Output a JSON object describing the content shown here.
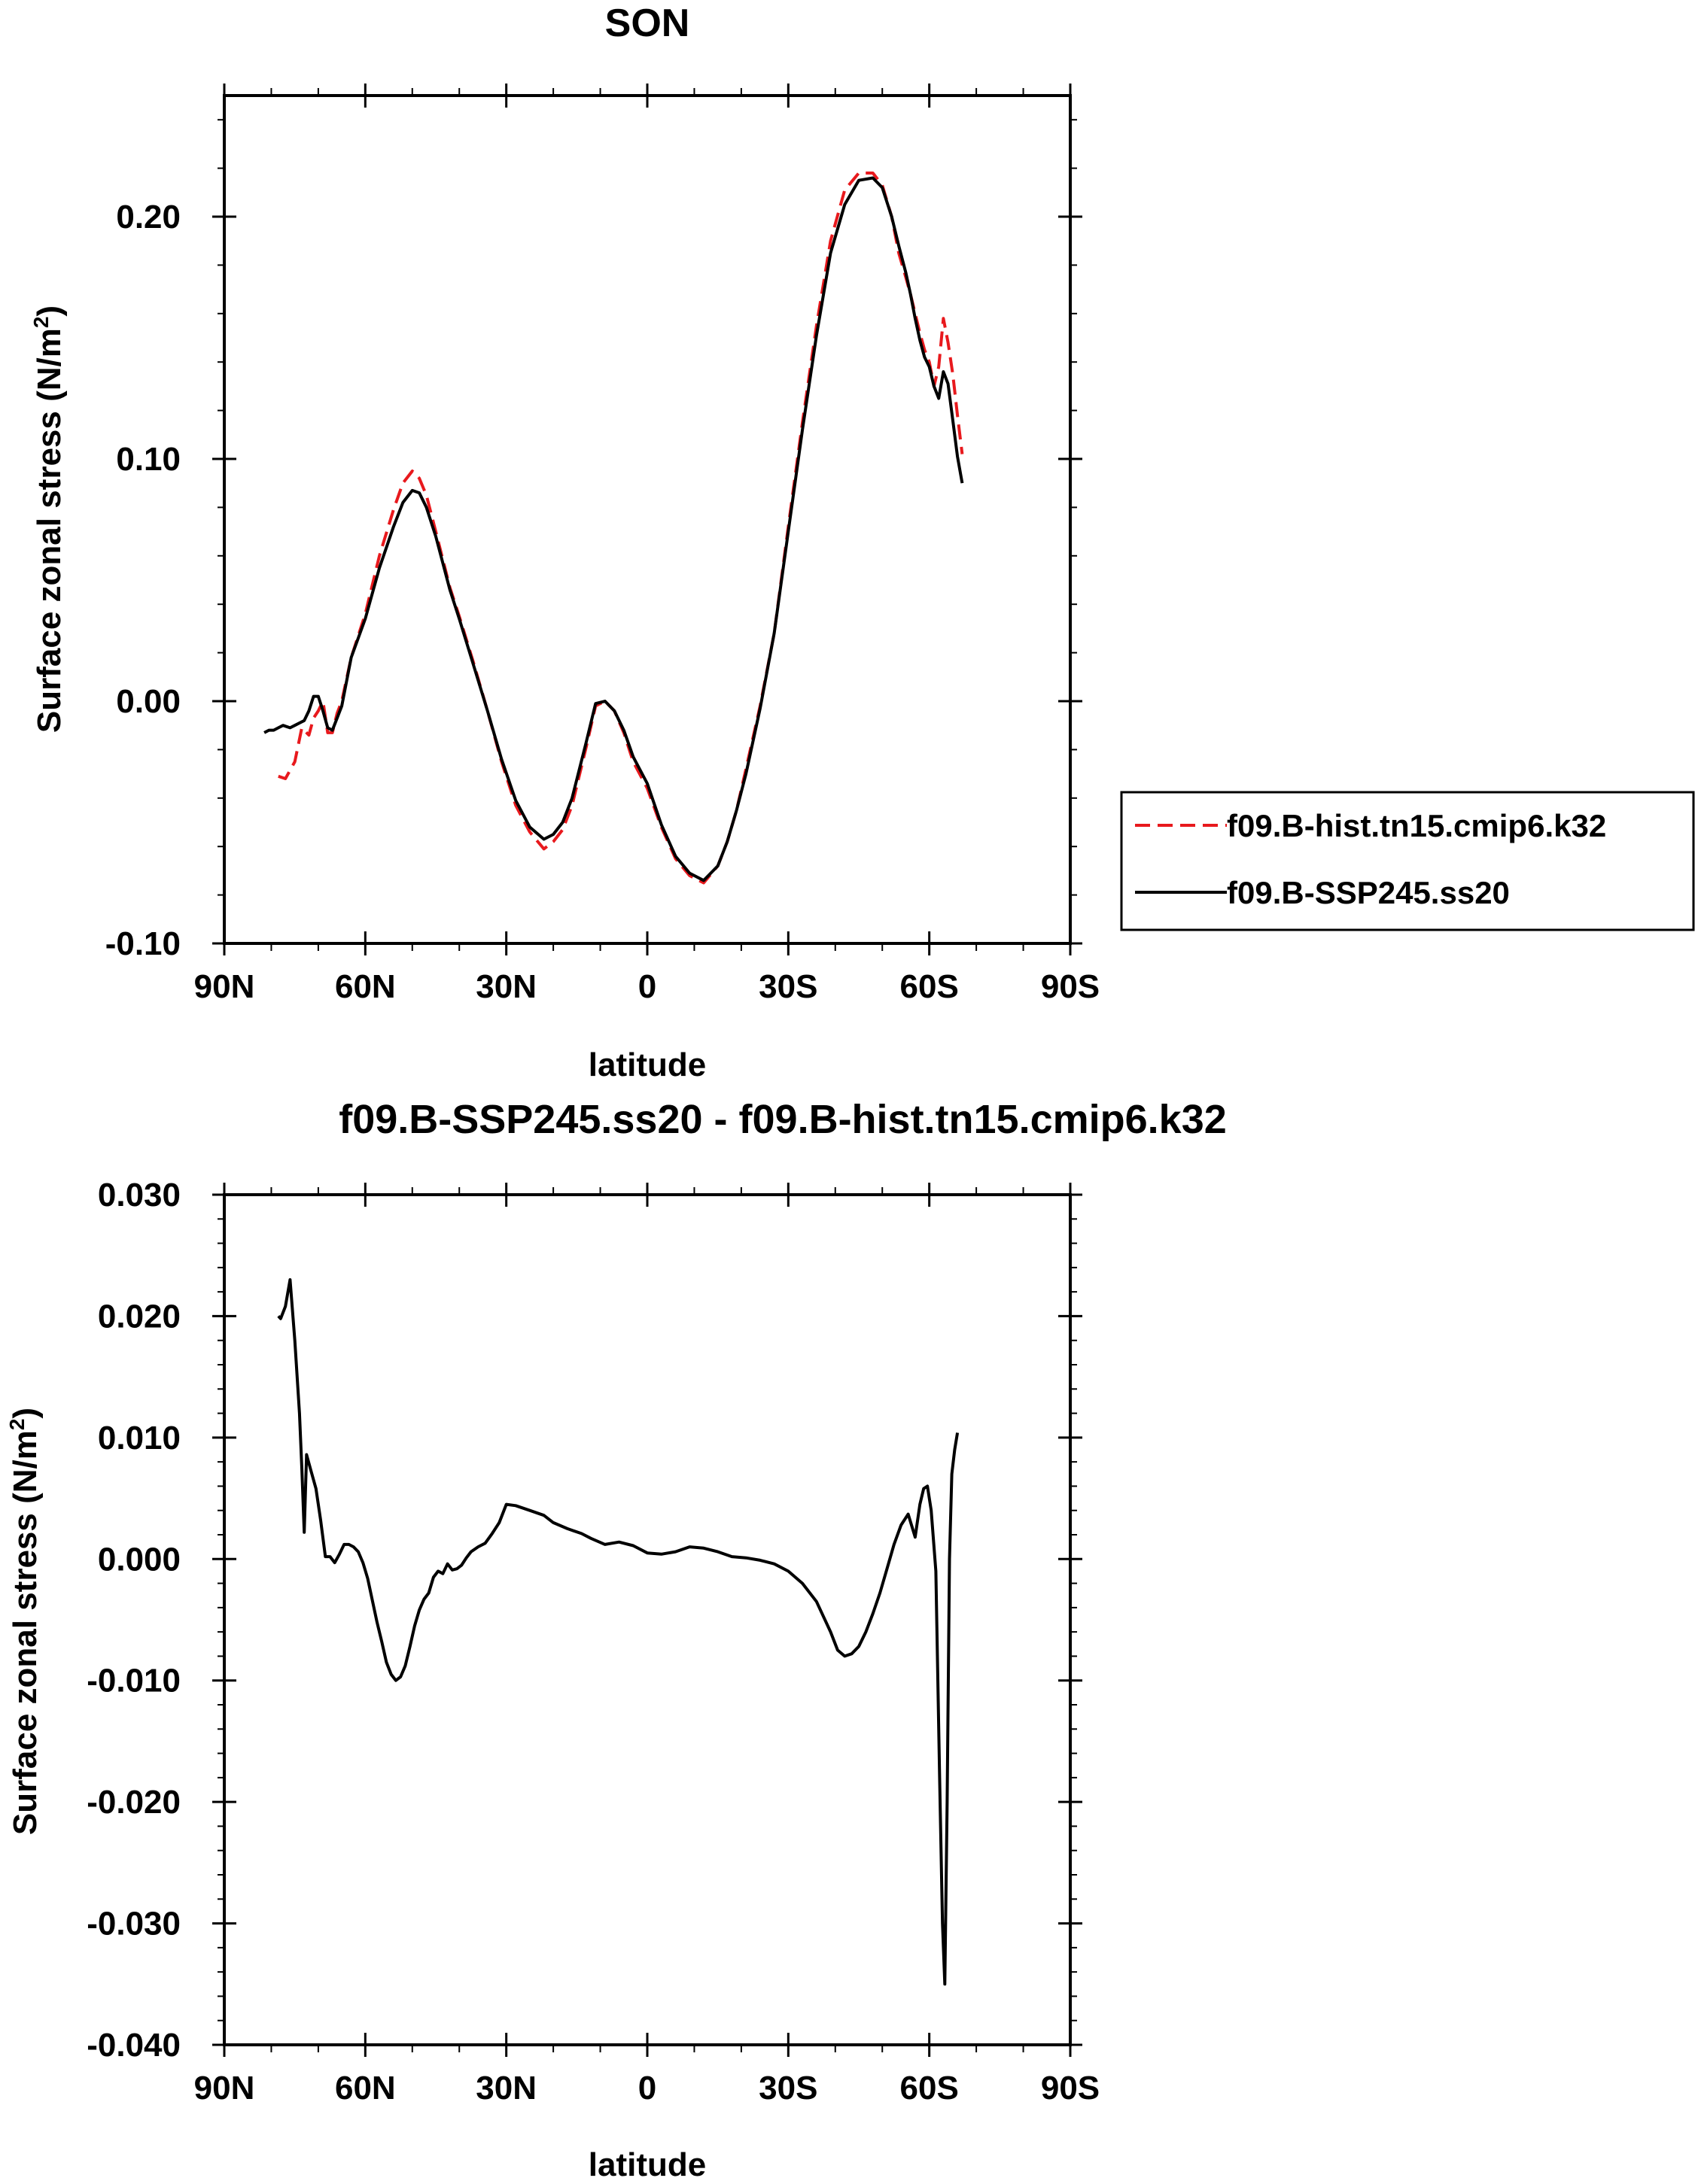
{
  "chart_data": [
    {
      "type": "line",
      "title": "SON",
      "xlabel": "latitude",
      "ylabel": "Surface zonal stress (N/m",
      "ylabel_sup": "2",
      "ylabel_close": ")",
      "xlim": [
        90,
        -90
      ],
      "ylim": [
        -0.1,
        0.25
      ],
      "x_ticks": [
        90,
        60,
        30,
        0,
        -30,
        -60,
        -90
      ],
      "x_tick_labels": [
        "90N",
        "60N",
        "30N",
        "0",
        "30S",
        "60S",
        "90S"
      ],
      "y_ticks": [
        -0.1,
        0.0,
        0.1,
        0.2
      ],
      "y_tick_labels": [
        "-0.10",
        "0.00",
        "0.10",
        "0.20"
      ],
      "legend_position": "outside-right",
      "series": [
        {
          "name": "f09.B-hist.tn15.cmip6.k32",
          "color": "#e8191d",
          "dash": "dashed",
          "x": [
            78.5,
            77,
            75,
            73.5,
            72,
            71,
            70,
            69,
            68,
            67,
            66,
            65,
            63,
            60,
            57,
            54,
            52,
            50,
            48.5,
            47,
            45,
            42,
            40,
            37,
            34,
            31,
            28,
            25,
            22,
            20,
            18,
            16,
            13,
            11,
            9,
            7,
            5,
            3,
            0,
            -3,
            -6,
            -9,
            -12,
            -15,
            -17,
            -19,
            -21,
            -24,
            -27,
            -30,
            -33,
            -36,
            -39,
            -42,
            -45,
            -48,
            -50,
            -52,
            -53.5,
            -55,
            -56,
            -57,
            -58,
            -59,
            -60,
            -61,
            -62,
            -63,
            -64,
            -65,
            -66,
            -67
          ],
          "y": [
            -0.031,
            -0.032,
            -0.025,
            -0.011,
            -0.014,
            -0.007,
            -0.004,
            0.0,
            -0.013,
            -0.013,
            -0.005,
            0.0,
            0.018,
            0.036,
            0.06,
            0.079,
            0.09,
            0.095,
            0.092,
            0.085,
            0.07,
            0.047,
            0.035,
            0.016,
            -0.004,
            -0.025,
            -0.043,
            -0.054,
            -0.061,
            -0.058,
            -0.053,
            -0.043,
            -0.019,
            -0.002,
            0.0,
            -0.004,
            -0.013,
            -0.025,
            -0.036,
            -0.052,
            -0.065,
            -0.072,
            -0.075,
            -0.068,
            -0.058,
            -0.045,
            -0.028,
            -0.002,
            0.028,
            0.072,
            0.115,
            0.155,
            0.19,
            0.211,
            0.218,
            0.218,
            0.213,
            0.2,
            0.185,
            0.175,
            0.168,
            0.16,
            0.152,
            0.145,
            0.14,
            0.13,
            0.138,
            0.158,
            0.148,
            0.135,
            0.118,
            0.102
          ]
        },
        {
          "name": "f09.B-SSP245.ss20",
          "color": "#000000",
          "dash": "solid",
          "x": [
            81.5,
            80.5,
            79.5,
            78.5,
            77.5,
            76,
            75,
            74,
            73,
            72,
            71,
            70,
            69,
            68,
            67,
            66,
            65,
            63,
            60,
            57,
            54,
            52,
            50,
            48.5,
            47,
            45,
            42,
            40,
            37,
            34,
            31,
            28,
            25,
            22,
            20,
            18,
            16,
            13,
            11,
            9,
            7,
            5,
            3,
            0,
            -3,
            -6,
            -9,
            -12,
            -15,
            -17,
            -19,
            -21,
            -24,
            -27,
            -30,
            -33,
            -36,
            -39,
            -42,
            -45,
            -48,
            -50,
            -52,
            -53.5,
            -55,
            -56,
            -57,
            -58,
            -59,
            -60,
            -61,
            -62,
            -63,
            -64,
            -65,
            -66,
            -67
          ],
          "y": [
            -0.013,
            -0.012,
            -0.012,
            -0.011,
            -0.01,
            -0.011,
            -0.01,
            -0.009,
            -0.008,
            -0.004,
            0.002,
            0.002,
            -0.004,
            -0.011,
            -0.012,
            -0.007,
            -0.002,
            0.018,
            0.034,
            0.055,
            0.072,
            0.082,
            0.087,
            0.086,
            0.08,
            0.068,
            0.046,
            0.034,
            0.015,
            -0.004,
            -0.024,
            -0.041,
            -0.052,
            -0.057,
            -0.055,
            -0.05,
            -0.04,
            -0.017,
            -0.001,
            0.0,
            -0.004,
            -0.012,
            -0.023,
            -0.034,
            -0.051,
            -0.064,
            -0.071,
            -0.074,
            -0.068,
            -0.058,
            -0.045,
            -0.03,
            -0.003,
            0.028,
            0.07,
            0.112,
            0.151,
            0.185,
            0.205,
            0.215,
            0.216,
            0.212,
            0.2,
            0.188,
            0.177,
            0.168,
            0.158,
            0.149,
            0.142,
            0.138,
            0.13,
            0.125,
            0.136,
            0.131,
            0.116,
            0.101,
            0.09
          ]
        }
      ]
    },
    {
      "type": "line",
      "title": "f09.B-SSP245.ss20 - f09.B-hist.tn15.cmip6.k32",
      "xlabel": "latitude",
      "ylabel": "Surface zonal stress (N/m",
      "ylabel_sup": "2",
      "ylabel_close": ")",
      "xlim": [
        90,
        -90
      ],
      "ylim": [
        -0.04,
        0.03
      ],
      "x_ticks": [
        90,
        60,
        30,
        0,
        -30,
        -60,
        -90
      ],
      "x_tick_labels": [
        "90N",
        "60N",
        "30N",
        "0",
        "30S",
        "60S",
        "90S"
      ],
      "y_ticks": [
        -0.04,
        -0.03,
        -0.02,
        -0.01,
        0.0,
        0.01,
        0.02,
        0.03
      ],
      "y_tick_labels": [
        "-0.040",
        "-0.030",
        "-0.020",
        "-0.010",
        "0.000",
        "0.010",
        "0.020",
        "0.030"
      ],
      "series": [
        {
          "color": "#000000",
          "dash": "solid",
          "x": [
            78.5,
            78,
            77,
            76,
            75,
            74,
            73.5,
            73,
            72.5,
            71.5,
            70.5,
            69.5,
            68.5,
            67.5,
            66.5,
            65.5,
            64.5,
            63.5,
            62.5,
            61.5,
            60.5,
            59.5,
            58.5,
            57.5,
            56.5,
            55.5,
            54.5,
            53.5,
            52.5,
            51.5,
            50.5,
            49.5,
            48.5,
            47.5,
            46.5,
            45.5,
            44.5,
            43.5,
            42.5,
            41.5,
            40.5,
            39.5,
            38.5,
            37.5,
            36,
            34.5,
            33,
            31.5,
            30,
            28,
            25,
            22,
            20,
            17,
            14,
            12,
            9,
            6,
            3,
            0,
            -3,
            -6,
            -9,
            -12,
            -15,
            -18,
            -21,
            -24,
            -27,
            -30,
            -33,
            -36,
            -39,
            -40.5,
            -42,
            -43.5,
            -45,
            -46.5,
            -48,
            -49.5,
            -51,
            -52.5,
            -54,
            -55.5,
            -57,
            -58,
            -58.8,
            -59.6,
            -60.4,
            -61.4,
            -62.2,
            -62.8,
            -63.3,
            -63.8,
            -64.3,
            -64.8,
            -65.4,
            -66
          ],
          "y": [
            0.02,
            0.0198,
            0.0208,
            0.023,
            0.018,
            0.012,
            0.0075,
            0.0022,
            0.0086,
            0.0072,
            0.0058,
            0.0032,
            0.0002,
            0.0002,
            -0.0003,
            0.0004,
            0.0012,
            0.0012,
            0.001,
            0.0006,
            -0.0003,
            -0.0016,
            -0.0034,
            -0.0052,
            -0.0068,
            -0.0085,
            -0.0095,
            -0.01,
            -0.0097,
            -0.0088,
            -0.0072,
            -0.0055,
            -0.0042,
            -0.0033,
            -0.0028,
            -0.0015,
            -0.001,
            -0.0012,
            -0.0004,
            -0.0009,
            -0.0008,
            -0.0005,
            0.0001,
            0.0006,
            0.001,
            0.0013,
            0.0021,
            0.003,
            0.0045,
            0.0044,
            0.004,
            0.0036,
            0.003,
            0.0025,
            0.0021,
            0.0017,
            0.0012,
            0.0014,
            0.0011,
            0.0005,
            0.0004,
            0.0006,
            0.001,
            0.0009,
            0.0006,
            0.0002,
            0.0001,
            -0.0001,
            -0.0004,
            -0.001,
            -0.002,
            -0.0035,
            -0.006,
            -0.0075,
            -0.008,
            -0.0078,
            -0.0072,
            -0.006,
            -0.0045,
            -0.0028,
            -0.0008,
            0.0012,
            0.0028,
            0.0037,
            0.0018,
            0.0045,
            0.0058,
            0.006,
            0.004,
            -0.001,
            -0.018,
            -0.03,
            -0.035,
            -0.02,
            0.0,
            0.007,
            0.009,
            0.0104
          ]
        }
      ]
    }
  ]
}
